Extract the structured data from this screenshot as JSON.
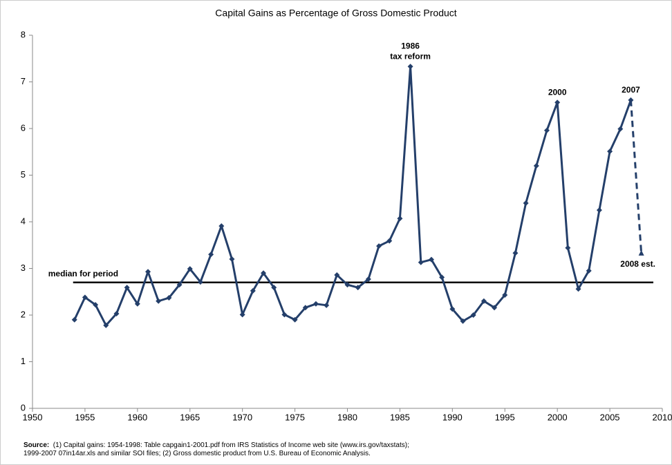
{
  "chart_data": {
    "type": "line",
    "title": "Capital Gains as Percentage of Gross Domestic Product",
    "x": [
      1954,
      1955,
      1956,
      1957,
      1958,
      1959,
      1960,
      1961,
      1962,
      1963,
      1964,
      1965,
      1966,
      1967,
      1968,
      1969,
      1970,
      1971,
      1972,
      1973,
      1974,
      1975,
      1976,
      1977,
      1978,
      1979,
      1980,
      1981,
      1982,
      1983,
      1984,
      1985,
      1986,
      1987,
      1988,
      1989,
      1990,
      1991,
      1992,
      1993,
      1994,
      1995,
      1996,
      1997,
      1998,
      1999,
      2000,
      2001,
      2002,
      2003,
      2004,
      2005,
      2006,
      2007
    ],
    "series": [
      {
        "color": "#243f6a",
        "values": [
          1.9,
          2.38,
          2.22,
          1.78,
          2.03,
          2.59,
          2.24,
          2.93,
          2.3,
          2.37,
          2.65,
          2.99,
          2.71,
          3.3,
          3.91,
          3.2,
          2.01,
          2.52,
          2.9,
          2.59,
          2.01,
          1.9,
          2.16,
          2.24,
          2.21,
          2.86,
          2.65,
          2.59,
          2.77,
          3.48,
          3.59,
          4.07,
          7.33,
          3.13,
          3.19,
          2.81,
          2.13,
          1.87,
          2.0,
          2.3,
          2.16,
          2.43,
          3.33,
          4.4,
          5.2,
          5.96,
          6.56,
          3.44,
          2.56,
          2.95,
          4.25,
          5.51,
          5.99,
          6.61
        ]
      }
    ],
    "estimate": {
      "x": 2008,
      "value": 3.32,
      "label": "2008 est."
    },
    "median": {
      "value": 2.7,
      "label": "median for period"
    },
    "annotations": [
      {
        "x": 1986,
        "lines": [
          "1986",
          "tax reform"
        ]
      },
      {
        "x": 2000,
        "lines": [
          "2000"
        ]
      },
      {
        "x": 2007,
        "lines": [
          "2007"
        ]
      }
    ],
    "xlim": [
      1950,
      2010
    ],
    "xticks": [
      1950,
      1955,
      1960,
      1965,
      1970,
      1975,
      1980,
      1985,
      1990,
      1995,
      2000,
      2005,
      2010
    ],
    "ylim": [
      0,
      8
    ],
    "yticks": [
      0,
      1,
      2,
      3,
      4,
      5,
      6,
      7,
      8
    ],
    "grid": false,
    "source": {
      "label": "Source:",
      "lines": [
        "(1) Capital gains: 1954-1998: Table capgain1-2001.pdf from IRS Statistics of Income web site (www.irs.gov/taxstats);",
        "1999-2007 07in14ar.xls and similar SOI files; (2) Gross domestic product from U.S. Bureau of Economic Analysis."
      ]
    }
  }
}
